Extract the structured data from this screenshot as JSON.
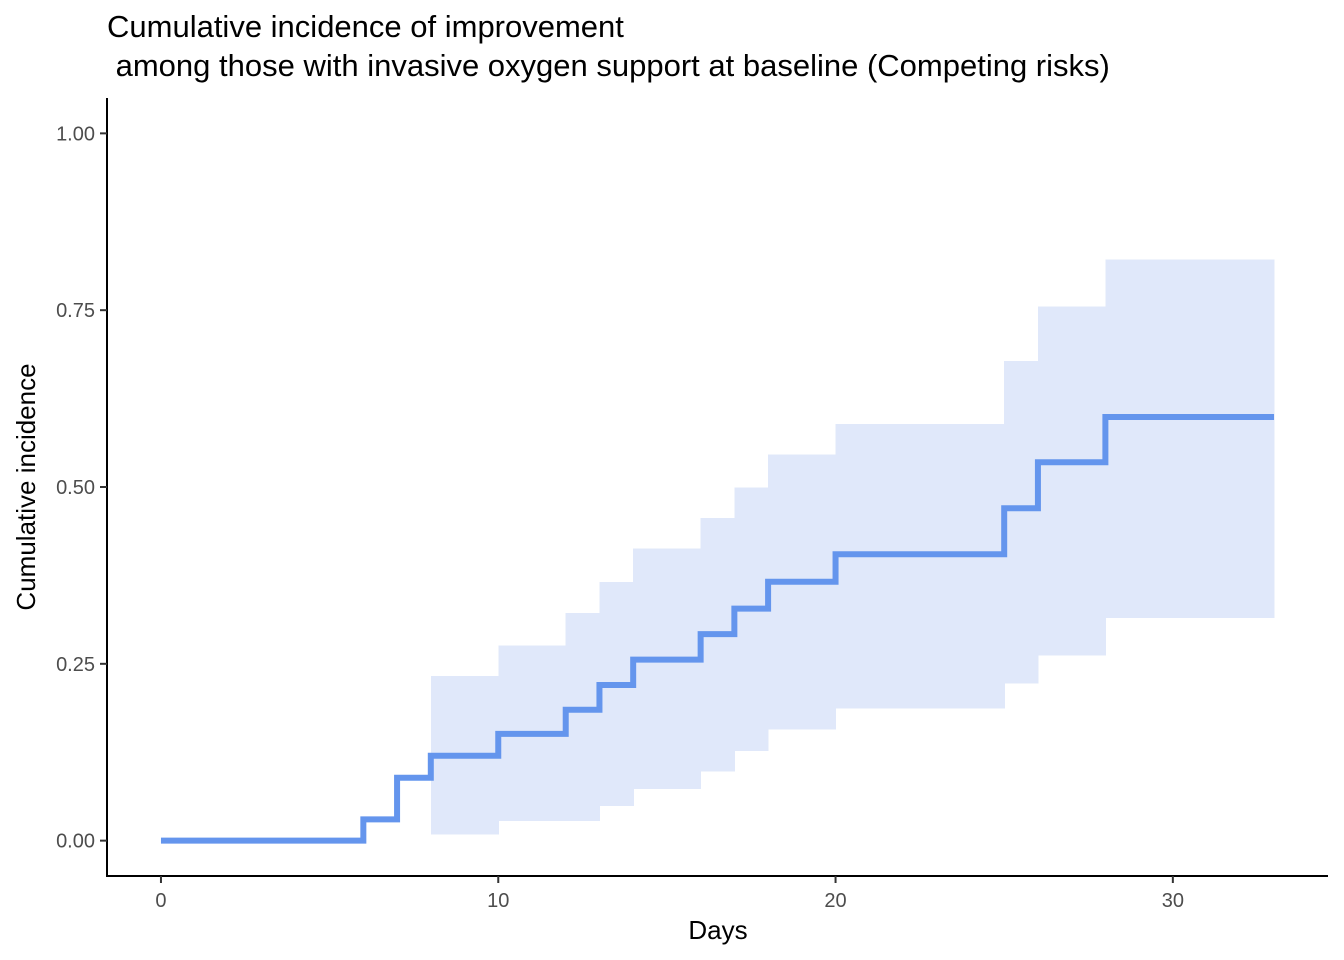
{
  "chart_data": {
    "type": "line",
    "step": true,
    "title_line1": "Cumulative incidence of improvement",
    "title_line2": " among those with invasive oxygen support at baseline (Competing risks)",
    "xlabel": "Days",
    "ylabel": "Cumulative incidence",
    "xlim": [
      -1.6,
      34.6
    ],
    "ylim": [
      -0.05,
      1.05
    ],
    "x_ticks": [
      0,
      10,
      20,
      30
    ],
    "x_tick_labels": [
      "0",
      "10",
      "20",
      "30"
    ],
    "y_ticks": [
      0,
      0.25,
      0.5,
      0.75,
      1
    ],
    "y_tick_labels": [
      "0.00",
      "0.25",
      "0.50",
      "0.75",
      "1.00"
    ],
    "grid": false,
    "line_color": "#6495ED",
    "band_color": "#E0E8FA",
    "series": [
      {
        "steps": [
          {
            "x": 0,
            "y": 0.0,
            "lower": null,
            "upper": null
          },
          {
            "x": 6,
            "y": 0.03,
            "lower": null,
            "upper": null
          },
          {
            "x": 7,
            "y": 0.089,
            "lower": null,
            "upper": null
          },
          {
            "x": 8,
            "y": 0.12,
            "lower": 0.009,
            "upper": 0.233
          },
          {
            "x": 10,
            "y": 0.151,
            "lower": 0.028,
            "upper": 0.276
          },
          {
            "x": 12,
            "y": 0.185,
            "lower": 0.028,
            "upper": 0.322
          },
          {
            "x": 13,
            "y": 0.22,
            "lower": 0.049,
            "upper": 0.366
          },
          {
            "x": 14,
            "y": 0.256,
            "lower": 0.073,
            "upper": 0.413
          },
          {
            "x": 16,
            "y": 0.292,
            "lower": 0.098,
            "upper": 0.456
          },
          {
            "x": 17,
            "y": 0.328,
            "lower": 0.127,
            "upper": 0.499
          },
          {
            "x": 18,
            "y": 0.366,
            "lower": 0.157,
            "upper": 0.546
          },
          {
            "x": 20,
            "y": 0.405,
            "lower": 0.187,
            "upper": 0.589
          },
          {
            "x": 25,
            "y": 0.47,
            "lower": 0.222,
            "upper": 0.678
          },
          {
            "x": 26,
            "y": 0.535,
            "lower": 0.262,
            "upper": 0.755
          },
          {
            "x": 28,
            "y": 0.599,
            "lower": 0.315,
            "upper": 0.822
          }
        ],
        "x_end": 33,
        "y_end": 0.599,
        "lower_end": 0.373,
        "upper_end": 0.822
      }
    ]
  }
}
